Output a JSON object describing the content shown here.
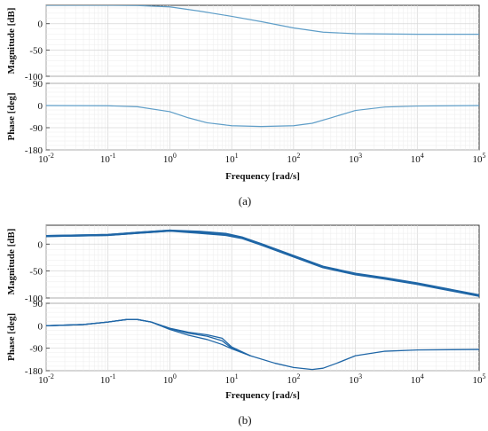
{
  "figure": {
    "captions": [
      "(a)",
      "(b)"
    ],
    "line_color": "#5f9ec8",
    "line_color_dark": "#1f66a6"
  },
  "chart_data": [
    {
      "type": "line",
      "panel": "a",
      "xscale": "log",
      "xlim": [
        0.01,
        100000
      ],
      "xticks": [
        0.01,
        0.1,
        1,
        10,
        100,
        1000,
        10000,
        100000
      ],
      "xticklabels": [
        "10-2",
        "10-1",
        "100",
        "101",
        "102",
        "103",
        "104",
        "105"
      ],
      "xlabel": "Frequency [rad/s]",
      "grid": true,
      "subplots": [
        {
          "ylabel": "Magnitude [dB]",
          "ylim": [
            -100,
            35
          ],
          "yticks": [
            0,
            -50,
            -100
          ],
          "series": [
            {
              "x": [
                0.01,
                0.1,
                0.3,
                1,
                3,
                10,
                30,
                100,
                300,
                1000,
                10000,
                100000
              ],
              "y": [
                35,
                35,
                34.5,
                32,
                24,
                14,
                4,
                -8,
                -16,
                -19,
                -20,
                -20
              ]
            }
          ]
        },
        {
          "ylabel": "Phase [deg]",
          "ylim": [
            -180,
            90
          ],
          "yticks": [
            90,
            0,
            -90,
            -180
          ],
          "series": [
            {
              "x": [
                0.01,
                0.1,
                0.3,
                1,
                2,
                4,
                10,
                30,
                100,
                200,
                400,
                1000,
                3000,
                10000,
                100000
              ],
              "y": [
                0,
                -1,
                -5,
                -25,
                -50,
                -70,
                -82,
                -85,
                -82,
                -72,
                -50,
                -20,
                -6,
                -2,
                0
              ]
            }
          ]
        }
      ]
    },
    {
      "type": "line",
      "panel": "b",
      "xscale": "log",
      "xlim": [
        0.01,
        100000
      ],
      "xticks": [
        0.01,
        0.1,
        1,
        10,
        100,
        1000,
        10000,
        100000
      ],
      "xticklabels": [
        "10-2",
        "10-1",
        "100",
        "101",
        "102",
        "103",
        "104",
        "105"
      ],
      "xlabel": "Frequency [rad/s]",
      "grid": true,
      "subplots": [
        {
          "ylabel": "Magnitude [dB]",
          "ylim": [
            -100,
            35
          ],
          "yticks": [
            0,
            -50,
            -100
          ],
          "series": [
            {
              "x": [
                0.01,
                0.1,
                0.3,
                1,
                3,
                8,
                15,
                30,
                100,
                300,
                1000,
                3000,
                10000,
                100000
              ],
              "y": [
                15,
                17,
                21,
                25,
                23,
                19,
                12,
                0,
                -22,
                -42,
                -55,
                -63,
                -73,
                -95
              ]
            },
            {
              "x": [
                0.01,
                0.1,
                0.3,
                1,
                3,
                8,
                15,
                30,
                100,
                300,
                1000,
                3000,
                10000,
                100000
              ],
              "y": [
                15,
                17,
                21,
                25,
                21,
                17,
                11,
                -1,
                -23,
                -43,
                -56,
                -64,
                -74,
                -96
              ]
            }
          ]
        },
        {
          "ylabel": "Phase [deg]",
          "ylim": [
            -180,
            90
          ],
          "yticks": [
            90,
            0,
            -90,
            -180
          ],
          "series": [
            {
              "x": [
                0.01,
                0.04,
                0.1,
                0.2,
                0.3,
                0.5,
                1,
                2,
                4,
                7,
                10,
                20,
                50,
                100,
                200,
                300,
                500,
                1000,
                3000,
                10000,
                100000
              ],
              "y": [
                0,
                5,
                15,
                25,
                25,
                15,
                -12,
                -30,
                -42,
                -60,
                -90,
                -120,
                -150,
                -167,
                -175,
                -170,
                -150,
                -120,
                -102,
                -97,
                -95
              ]
            },
            {
              "x": [
                0.01,
                0.04,
                0.1,
                0.2,
                0.3,
                0.5,
                1,
                2,
                4,
                7,
                10,
                20
              ],
              "y": [
                0,
                5,
                15,
                25,
                25,
                15,
                -15,
                -38,
                -55,
                -75,
                -92,
                -120
              ]
            },
            {
              "x": [
                0.01,
                0.04,
                0.1,
                0.2,
                0.3,
                0.5,
                1,
                2,
                4,
                7,
                10,
                20
              ],
              "y": [
                0,
                5,
                15,
                25,
                25,
                15,
                -10,
                -26,
                -36,
                -50,
                -85,
                -120
              ]
            }
          ]
        }
      ]
    }
  ]
}
